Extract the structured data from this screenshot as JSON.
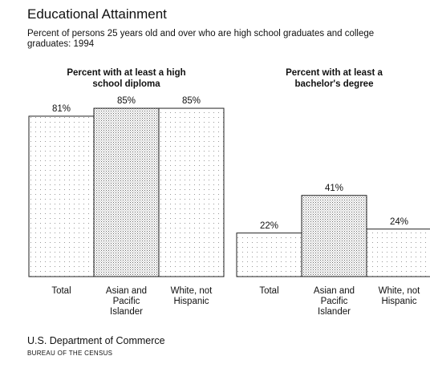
{
  "header": {
    "title": "Educational Attainment",
    "subtitle": "Percent of persons 25 years old and over who are high school graduates and college graduates: 1994"
  },
  "chart_data": [
    {
      "type": "bar",
      "title": "Percent with at least a high school diploma",
      "categories": [
        "Total",
        "Asian and Pacific Islander",
        "White, not Hispanic"
      ],
      "values": [
        81,
        85,
        85
      ],
      "value_labels": [
        "81%",
        "85%",
        "85%"
      ],
      "ylim": [
        0,
        100
      ]
    },
    {
      "type": "bar",
      "title": "Percent with at least a bachelor's degree",
      "categories": [
        "Total",
        "Asian and Pacific Islander",
        "White, not Hispanic"
      ],
      "values": [
        22,
        41,
        24
      ],
      "value_labels": [
        "22%",
        "41%",
        "24%"
      ],
      "ylim": [
        0,
        100
      ]
    }
  ],
  "footer": {
    "department": "U.S. Department of Commerce",
    "bureau": "BUREAU OF THE CENSUS"
  }
}
